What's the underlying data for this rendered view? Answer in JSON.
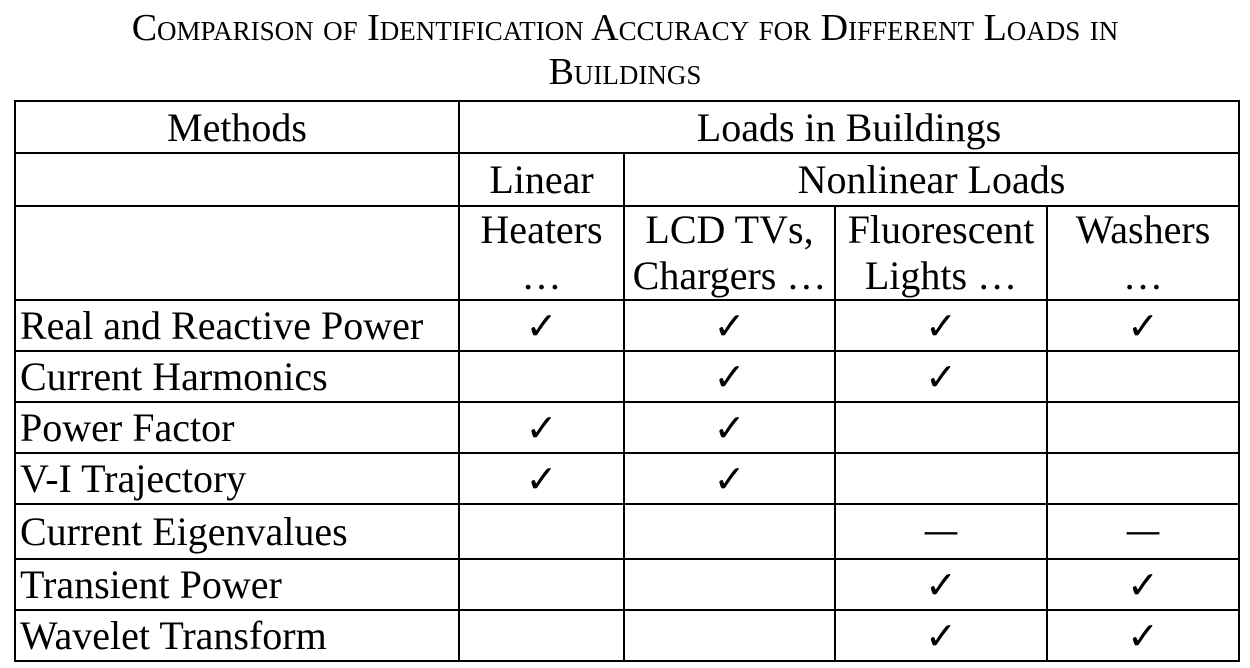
{
  "caption": {
    "line1": "Comparison of Identification Accuracy for Different Loads in",
    "line2": "Buildings"
  },
  "table": {
    "header": {
      "methods": "Methods",
      "loads": "Loads in Buildings",
      "linear": "Linear",
      "nonlinear": "Nonlinear Loads",
      "col1_line1": "Heaters",
      "col1_line2": "…",
      "col2_line1": "LCD TVs,",
      "col2_line2": "Chargers …",
      "col3_line1": "Fluorescent",
      "col3_line2": "Lights …",
      "col4_line1": "Washers",
      "col4_line2": "…"
    },
    "rows": [
      {
        "method": "Real and Reactive Power",
        "c1": "✓",
        "c2": "✓",
        "c3": "✓",
        "c4": "✓"
      },
      {
        "method": "Current Harmonics",
        "c1": "",
        "c2": "✓",
        "c3": "✓",
        "c4": ""
      },
      {
        "method": "Power Factor",
        "c1": "✓",
        "c2": "✓",
        "c3": "",
        "c4": ""
      },
      {
        "method": "V-I Trajectory",
        "c1": "✓",
        "c2": "✓",
        "c3": "",
        "c4": ""
      },
      {
        "method": "Current Eigenvalues",
        "c1": "",
        "c2": "",
        "c3": "—",
        "c4": "—"
      },
      {
        "method": "Transient Power",
        "c1": "",
        "c2": "",
        "c3": "✓",
        "c4": "✓"
      },
      {
        "method": "Wavelet Transform",
        "c1": "",
        "c2": "",
        "c3": "✓",
        "c4": "✓"
      }
    ]
  }
}
